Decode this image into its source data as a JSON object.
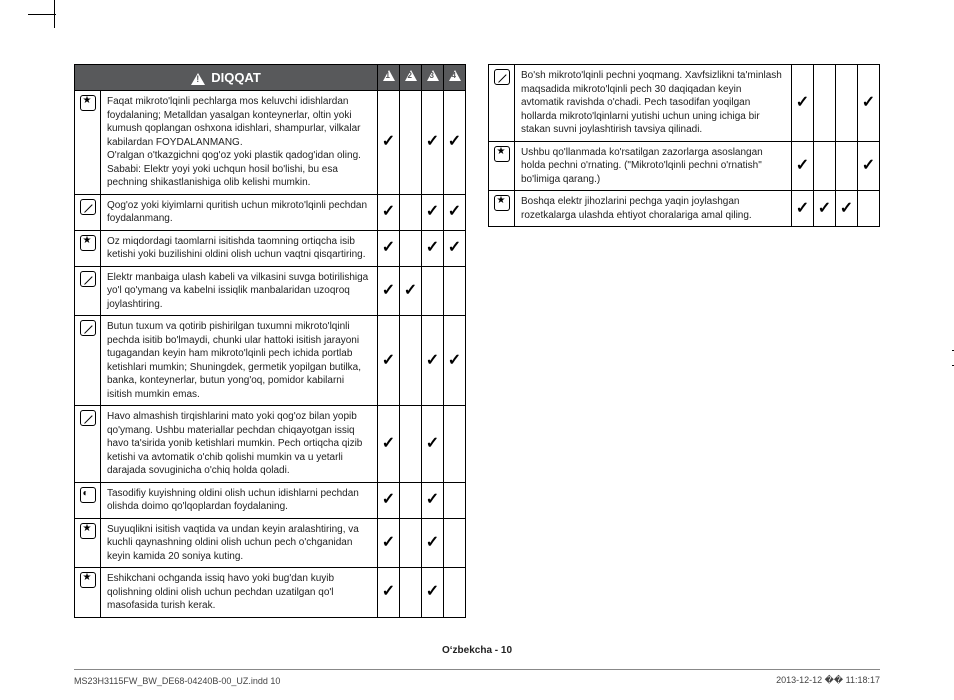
{
  "header": {
    "title": "DIQQAT"
  },
  "left": [
    {
      "sym": "star",
      "chk": [
        1,
        0,
        1,
        1
      ],
      "text": "Faqat mikroto'lqinli pechlarga mos keluvchi idishlardan foydalaning; Metalldan yasalgan konteynerlar, oltin yoki kumush qoplangan oshxona idishlari, shampurlar, vilkalar kabilardan FOYDALANMANG.\nO'ralgan o'tkazgichni qog'oz yoki plastik qadog'idan oling.\nSababi: Elektr yoyi yoki uchqun hosil bo'lishi, bu esa pechning shikastlanishiga olib kelishi mumkin."
    },
    {
      "sym": "slash",
      "chk": [
        1,
        0,
        1,
        1
      ],
      "text": "Qog'oz yoki kiyimlarni quritish uchun mikroto'lqinli pechdan foydalanmang."
    },
    {
      "sym": "star",
      "chk": [
        1,
        0,
        1,
        1
      ],
      "text": "Oz miqdordagi taomlarni isitishda taomning ortiqcha isib ketishi yoki buzilishini oldini olish uchun vaqtni qisqartiring."
    },
    {
      "sym": "slash",
      "chk": [
        1,
        1,
        0,
        0
      ],
      "text": "Elektr manbaiga ulash kabeli va vilkasini suvga botirilishiga yo'l qo'ymang va kabelni issiqlik manbalaridan uzoqroq joylashtiring."
    },
    {
      "sym": "slash",
      "chk": [
        1,
        0,
        1,
        1
      ],
      "text": "Butun tuxum va qotirib pishirilgan tuxumni mikroto'lqinli pechda isitib bo'lmaydi, chunki ular hattoki isitish jarayoni tugagandan keyin ham mikroto'lqinli pech ichida portlab ketishlari mumkin; Shuningdek, germetik yopilgan butilka, banka, konteynerlar, butun yong'oq, pomidor kabilarni isitish mumkin emas."
    },
    {
      "sym": "slash",
      "chk": [
        1,
        0,
        1,
        0
      ],
      "text": "Havo almashish tirqishlarini mato yoki qog'oz bilan yopib qo'ymang. Ushbu materiallar pechdan chiqayotgan issiq havo ta'sirida yonib ketishlari mumkin. Pech ortiqcha qizib ketishi va avtomatik o'chib qolishi mumkin va u yetarli darajada sovuginicha o'chiq holda qoladi."
    },
    {
      "sym": "dish",
      "chk": [
        1,
        0,
        1,
        0
      ],
      "text": "Tasodifiy kuyishning oldini olish uchun idishlarni pechdan olishda doimo qo'lqoplardan foydalaning."
    },
    {
      "sym": "star",
      "chk": [
        1,
        0,
        1,
        0
      ],
      "text": "Suyuqlikni isitish vaqtida va undan keyin aralashtiring, va kuchli qaynashning oldini olish uchun pech o'chganidan keyin kamida 20 soniya kuting."
    },
    {
      "sym": "star",
      "chk": [
        1,
        0,
        1,
        0
      ],
      "text": "Eshikchani ochganda issiq havo yoki bug'dan kuyib qolishning oldini olish uchun pechdan uzatilgan qo'l masofasida turish kerak."
    }
  ],
  "right": [
    {
      "sym": "slash",
      "chk": [
        1,
        0,
        0,
        1
      ],
      "text": "Bo'sh mikroto'lqinli pechni yoqmang. Xavfsizlikni ta'minlash maqsadida mikroto'lqinli pech 30 daqiqadan keyin avtomatik ravishda o'chadi. Pech tasodifan yoqilgan hollarda mikroto'lqinlarni yutishi uchun uning ichiga bir stakan suvni joylashtirish tavsiya qilinadi."
    },
    {
      "sym": "star",
      "chk": [
        1,
        0,
        0,
        1
      ],
      "text": "Ushbu qo'llanmada ko'rsatilgan zazorlarga asoslangan holda pechni o'rnating. (\"Mikroto'lqinli pechni o'rnatish\" bo'limiga qarang.)"
    },
    {
      "sym": "star",
      "chk": [
        1,
        1,
        1,
        0
      ],
      "text": "Boshqa elektr jihozlarini pechga yaqin joylashgan rozetkalarga ulashda ehtiyot choralariga amal qiling."
    }
  ],
  "footer": {
    "page": "Oʻzbekcha - 10",
    "left": "MS23H3115FW_BW_DE68-04240B-00_UZ.indd   10",
    "right": "2013-12-12   �� 11:18:17"
  }
}
